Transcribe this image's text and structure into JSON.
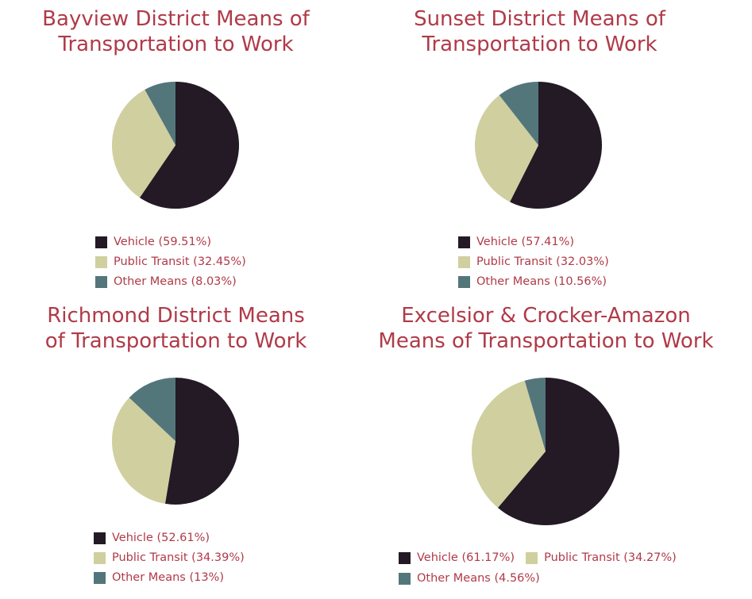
{
  "colors": {
    "title": "#b03a48",
    "vehicle": "#231a25",
    "transit": "#d0cf9f",
    "other": "#53767b"
  },
  "chart_data": [
    {
      "type": "pie",
      "title_lines": [
        "Bayview District Means of",
        "Transportation to Work"
      ],
      "labels": [
        "Vehicle",
        "Public Transit",
        "Other Means"
      ],
      "values": [
        59.51,
        32.45,
        8.03
      ],
      "legend_text": [
        "Vehicle (59.51%)",
        "Public Transit (32.45%)",
        "Other Means (8.03%)"
      ]
    },
    {
      "type": "pie",
      "title_lines": [
        "Sunset District Means of",
        "Transportation to Work"
      ],
      "labels": [
        "Vehicle",
        "Public Transit",
        "Other Means"
      ],
      "values": [
        57.41,
        32.03,
        10.56
      ],
      "legend_text": [
        "Vehicle (57.41%)",
        "Public Transit (32.03%)",
        "Other Means (10.56%)"
      ]
    },
    {
      "type": "pie",
      "title_lines": [
        "Richmond District Means",
        "of Transportation to Work"
      ],
      "labels": [
        "Vehicle",
        "Public Transit",
        "Other Means"
      ],
      "values": [
        52.61,
        34.39,
        13
      ],
      "legend_text": [
        "Vehicle (52.61%)",
        "Public Transit (34.39%)",
        "Other Means (13%)"
      ]
    },
    {
      "type": "pie",
      "title_lines": [
        "Excelsior & Crocker-Amazon",
        "Means of Transportation to Work"
      ],
      "labels": [
        "Vehicle",
        "Public Transit",
        "Other Means"
      ],
      "values": [
        61.17,
        34.27,
        4.56
      ],
      "legend_text": [
        "Vehicle (61.17%)",
        "Public Transit (34.27%)",
        "Other Means (4.56%)"
      ]
    }
  ]
}
